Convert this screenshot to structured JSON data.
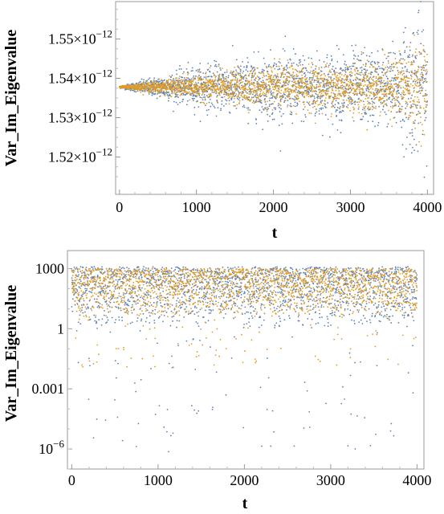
{
  "chart_data": [
    {
      "type": "scatter",
      "xlabel": "t",
      "ylabel": "Var_Im_Eigenvalue",
      "xlim": [
        -50,
        4080
      ],
      "ylim": [
        1.5105e-12,
        1.5595e-12
      ],
      "x_ticks": [
        {
          "value": 0,
          "label": "0"
        },
        {
          "value": 1000,
          "label": "1000"
        },
        {
          "value": 2000,
          "label": "2000"
        },
        {
          "value": 3000,
          "label": "3000"
        },
        {
          "value": 4000,
          "label": "4000"
        }
      ],
      "y_ticks": [
        {
          "value": 1.52e-12,
          "mantissa": "1.52",
          "base": "×10",
          "exponent": "−12"
        },
        {
          "value": 1.53e-12,
          "mantissa": "1.53",
          "base": "×10",
          "exponent": "−12"
        },
        {
          "value": 1.54e-12,
          "mantissa": "1.54",
          "base": "×10",
          "exponent": "−12"
        },
        {
          "value": 1.55e-12,
          "mantissa": "1.55",
          "base": "×10",
          "exponent": "−12"
        }
      ],
      "series": [
        {
          "color": "#5e81b5",
          "points": 2000,
          "center": 1.5378e-12,
          "spread": [
            [
              0,
              1e-16
            ],
            [
              1000,
              2.5e-15
            ],
            [
              2000,
              4e-15
            ],
            [
              3000,
              4.5e-15
            ],
            [
              3500,
              4.5e-15
            ],
            [
              3800,
              8e-15
            ],
            [
              4000,
              1e-14
            ]
          ]
        },
        {
          "color": "#e19c24",
          "points": 2000,
          "center": 1.5378e-12,
          "spread": [
            [
              0,
              1e-16
            ],
            [
              1000,
              1.5e-15
            ],
            [
              2000,
              2.5e-15
            ],
            [
              3000,
              3e-15
            ],
            [
              3500,
              3.5e-15
            ],
            [
              3800,
              5e-15
            ],
            [
              4000,
              5e-15
            ]
          ]
        }
      ],
      "grid": false
    },
    {
      "type": "scatter",
      "xlabel": "t",
      "ylabel": "Var_Im_Eigenvalue",
      "yscale": "log",
      "xlim": [
        -50,
        4080
      ],
      "ylim": [
        1e-07,
        8000
      ],
      "x_ticks": [
        {
          "value": 0,
          "label": "0"
        },
        {
          "value": 1000,
          "label": "1000"
        },
        {
          "value": 2000,
          "label": "2000"
        },
        {
          "value": 3000,
          "label": "3000"
        },
        {
          "value": 4000,
          "label": "4000"
        }
      ],
      "y_ticks": [
        {
          "value": 1000,
          "label": "1000"
        },
        {
          "value": 1,
          "label": "1"
        },
        {
          "value": 0.001,
          "label": "0.001"
        },
        {
          "value": 1e-06,
          "mantissa": "10",
          "exponent": "−6"
        }
      ],
      "series": [
        {
          "color": "#5e81b5",
          "points": 2000,
          "log10_max": 3.1,
          "log10_typical_min": 0.0,
          "log10_rare_min": -6.3
        },
        {
          "color": "#e19c24",
          "points": 2000,
          "log10_max": 3.0,
          "log10_typical_min": 0.5,
          "log10_rare_min": -2.0
        }
      ],
      "grid": false
    }
  ]
}
